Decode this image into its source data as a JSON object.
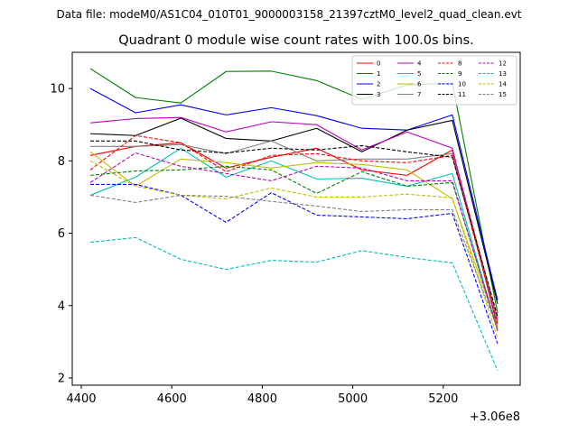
{
  "figure": {
    "suptitle": "Data file: modeM0/AS1C04_010T01_9000003158_21397cztM0_level2_quad_clean.evt"
  },
  "chart_data": {
    "type": "line",
    "title": "Quadrant 0 module wise count rates with 100.0s bins.",
    "xlabel": "",
    "ylabel": "",
    "x_offset_label": "+3.06e8",
    "x": [
      4420,
      4520,
      4620,
      4720,
      4820,
      4920,
      5020,
      5120,
      5220,
      5320
    ],
    "xlim": [
      4380,
      5370
    ],
    "ylim": [
      1.8,
      11.0
    ],
    "xticks": [
      4400,
      4600,
      4800,
      5000,
      5200
    ],
    "yticks": [
      2,
      4,
      6,
      8,
      10
    ],
    "legend_position": "top-right",
    "legend_columns": 4,
    "series": [
      {
        "name": "0",
        "color": "#ff0000",
        "dashed": false,
        "values": [
          8.15,
          8.4,
          8.5,
          7.8,
          8.1,
          8.35,
          7.75,
          7.6,
          8.3,
          3.6
        ]
      },
      {
        "name": "1",
        "color": "#008000",
        "dashed": false,
        "values": [
          10.55,
          9.75,
          9.6,
          10.47,
          10.48,
          10.22,
          9.7,
          10.1,
          10.15,
          3.8
        ]
      },
      {
        "name": "2",
        "color": "#0000ff",
        "dashed": false,
        "values": [
          10.0,
          9.33,
          9.55,
          9.27,
          9.47,
          9.25,
          8.9,
          8.85,
          9.27,
          4.15
        ]
      },
      {
        "name": "3",
        "color": "#000000",
        "dashed": false,
        "values": [
          8.75,
          8.7,
          9.18,
          8.62,
          8.55,
          8.9,
          8.25,
          8.85,
          9.12,
          4.05
        ]
      },
      {
        "name": "4",
        "color": "#bf00bf",
        "dashed": false,
        "values": [
          9.05,
          9.17,
          9.2,
          8.8,
          9.08,
          9.0,
          8.3,
          8.8,
          8.35,
          3.4
        ]
      },
      {
        "name": "5",
        "color": "#00bfbf",
        "dashed": false,
        "values": [
          7.05,
          7.55,
          8.35,
          7.55,
          8.0,
          7.5,
          7.52,
          7.3,
          7.65,
          3.3
        ]
      },
      {
        "name": "6",
        "color": "#bfbf00",
        "dashed": false,
        "values": [
          8.25,
          7.3,
          8.05,
          7.95,
          7.8,
          7.95,
          7.9,
          7.75,
          6.95,
          3.4
        ]
      },
      {
        "name": "7",
        "color": "#808080",
        "dashed": false,
        "values": [
          8.4,
          8.4,
          8.45,
          8.2,
          8.55,
          8.0,
          8.05,
          8.05,
          8.2,
          3.55
        ]
      },
      {
        "name": "8",
        "color": "#ff0000",
        "dashed": true,
        "values": [
          7.75,
          8.7,
          8.5,
          7.7,
          8.15,
          8.2,
          8.0,
          7.95,
          8.15,
          3.5
        ]
      },
      {
        "name": "9",
        "color": "#008000",
        "dashed": true,
        "values": [
          7.6,
          7.72,
          7.75,
          7.85,
          7.75,
          7.1,
          7.7,
          7.3,
          7.4,
          3.35
        ]
      },
      {
        "name": "10",
        "color": "#0000ff",
        "dashed": true,
        "values": [
          7.35,
          7.35,
          7.05,
          6.3,
          7.12,
          6.5,
          6.45,
          6.4,
          6.55,
          2.95
        ]
      },
      {
        "name": "11",
        "color": "#000000",
        "dashed": true,
        "values": [
          8.55,
          8.55,
          8.3,
          8.22,
          8.35,
          8.3,
          8.42,
          8.25,
          8.1,
          3.7
        ]
      },
      {
        "name": "12",
        "color": "#bf00bf",
        "dashed": true,
        "values": [
          7.4,
          8.22,
          7.85,
          7.65,
          7.45,
          7.85,
          7.8,
          7.45,
          7.45,
          3.3
        ]
      },
      {
        "name": "13",
        "color": "#00bfbf",
        "dashed": true,
        "values": [
          5.75,
          5.88,
          5.28,
          5.0,
          5.25,
          5.2,
          5.52,
          5.33,
          5.18,
          2.2
        ]
      },
      {
        "name": "14",
        "color": "#bfbf00",
        "dashed": true,
        "values": [
          8.0,
          7.3,
          7.05,
          6.95,
          7.25,
          7.0,
          7.0,
          7.08,
          6.98,
          3.1
        ]
      },
      {
        "name": "15",
        "color": "#808080",
        "dashed": true,
        "values": [
          7.05,
          6.85,
          7.05,
          7.02,
          6.88,
          6.75,
          6.6,
          6.65,
          6.65,
          3.35
        ]
      }
    ]
  }
}
